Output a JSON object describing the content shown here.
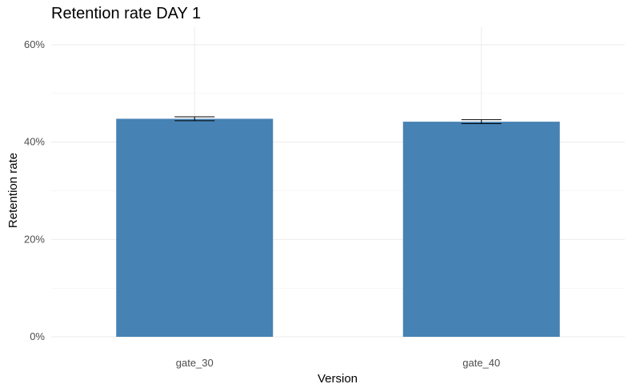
{
  "chart_data": {
    "type": "bar",
    "title": "Retention rate DAY 1",
    "xlabel": "Version",
    "ylabel": "Retention rate",
    "categories": [
      "gate_30",
      "gate_40"
    ],
    "values": [
      44.8,
      44.2
    ],
    "error_bars": [
      {
        "low": 44.4,
        "high": 45.2
      },
      {
        "low": 43.8,
        "high": 44.6
      }
    ],
    "ylim": [
      0,
      60
    ],
    "y_ticks": [
      0,
      20,
      40,
      60
    ],
    "y_tick_labels": [
      "0%",
      "20%",
      "40%",
      "60%"
    ],
    "grid": true,
    "bar_color": "#4682b4"
  }
}
